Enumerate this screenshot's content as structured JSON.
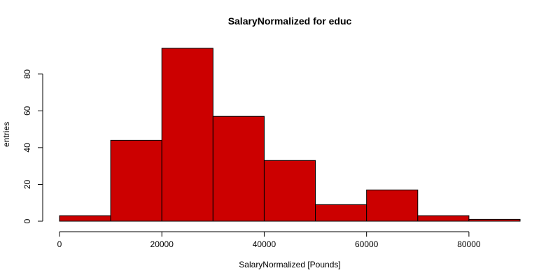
{
  "chart_data": {
    "type": "bar",
    "title": "SalaryNormalized for educ",
    "xlabel": "SalaryNormalized [Pounds]",
    "ylabel": "entries",
    "bin_edges": [
      0,
      10000,
      20000,
      30000,
      40000,
      50000,
      60000,
      70000,
      80000,
      90000
    ],
    "values": [
      3,
      44,
      94,
      57,
      33,
      9,
      17,
      3,
      1
    ],
    "xlim": [
      0,
      90000
    ],
    "ylim": [
      0,
      94
    ],
    "x_ticks": [
      0,
      20000,
      40000,
      60000,
      80000
    ],
    "y_ticks": [
      0,
      20,
      40,
      60,
      80
    ],
    "grid": false,
    "colors": {
      "bar_fill": "#cc0000",
      "bar_stroke": "#000000"
    }
  }
}
